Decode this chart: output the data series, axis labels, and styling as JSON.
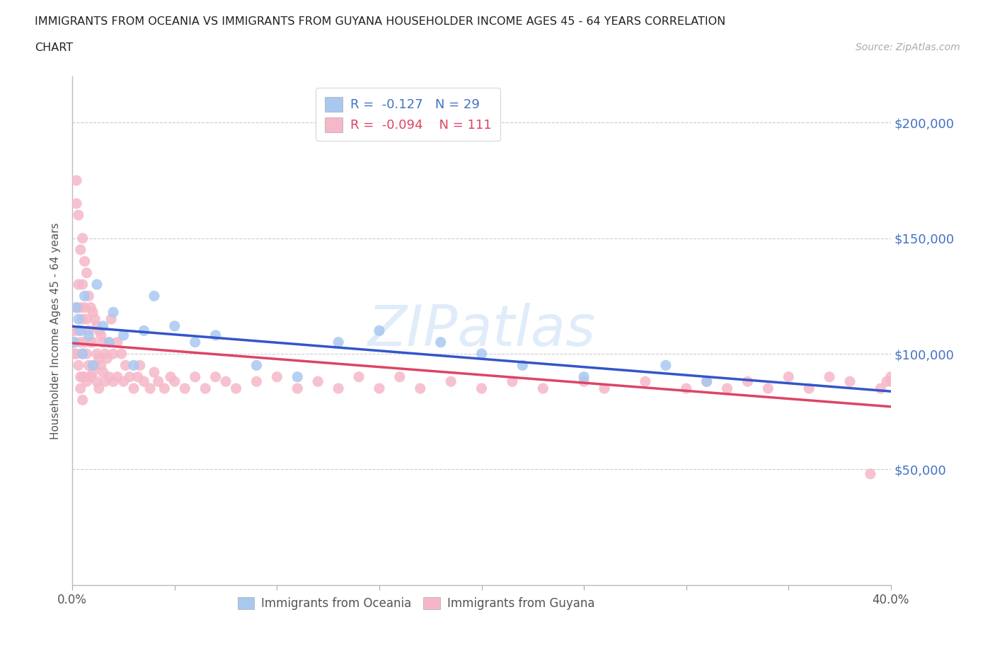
{
  "title_line1": "IMMIGRANTS FROM OCEANIA VS IMMIGRANTS FROM GUYANA HOUSEHOLDER INCOME AGES 45 - 64 YEARS CORRELATION",
  "title_line2": "CHART",
  "source": "Source: ZipAtlas.com",
  "ylabel": "Householder Income Ages 45 - 64 years",
  "xlim": [
    0.0,
    0.4
  ],
  "ylim": [
    0,
    220000
  ],
  "yticks": [
    0,
    50000,
    100000,
    150000,
    200000
  ],
  "ytick_labels": [
    "",
    "$50,000",
    "$100,000",
    "$150,000",
    "$200,000"
  ],
  "xtick_labels": [
    "0.0%",
    "",
    "",
    "",
    "",
    "",
    "",
    "",
    "40.0%"
  ],
  "oceania_color": "#a8c8f0",
  "guyana_color": "#f5b8c8",
  "oceania_line_color": "#3355cc",
  "guyana_line_color": "#dd4466",
  "r_oceania": -0.127,
  "n_oceania": 29,
  "r_guyana": -0.094,
  "n_guyana": 111,
  "background_color": "#ffffff",
  "oceania_x": [
    0.001,
    0.002,
    0.003,
    0.004,
    0.005,
    0.006,
    0.008,
    0.01,
    0.012,
    0.015,
    0.018,
    0.02,
    0.025,
    0.03,
    0.035,
    0.04,
    0.05,
    0.06,
    0.07,
    0.09,
    0.11,
    0.13,
    0.15,
    0.18,
    0.2,
    0.22,
    0.25,
    0.29,
    0.31
  ],
  "oceania_y": [
    105000,
    120000,
    115000,
    110000,
    100000,
    125000,
    108000,
    95000,
    130000,
    112000,
    105000,
    118000,
    108000,
    95000,
    110000,
    125000,
    112000,
    105000,
    108000,
    95000,
    90000,
    105000,
    110000,
    105000,
    100000,
    95000,
    90000,
    95000,
    88000
  ],
  "guyana_x": [
    0.001,
    0.001,
    0.001,
    0.002,
    0.002,
    0.002,
    0.002,
    0.003,
    0.003,
    0.003,
    0.003,
    0.004,
    0.004,
    0.004,
    0.004,
    0.004,
    0.005,
    0.005,
    0.005,
    0.005,
    0.005,
    0.005,
    0.006,
    0.006,
    0.006,
    0.006,
    0.007,
    0.007,
    0.007,
    0.007,
    0.008,
    0.008,
    0.008,
    0.009,
    0.009,
    0.009,
    0.01,
    0.01,
    0.01,
    0.011,
    0.011,
    0.012,
    0.012,
    0.012,
    0.013,
    0.013,
    0.013,
    0.014,
    0.014,
    0.015,
    0.015,
    0.016,
    0.016,
    0.017,
    0.018,
    0.018,
    0.019,
    0.02,
    0.02,
    0.022,
    0.022,
    0.024,
    0.025,
    0.026,
    0.028,
    0.03,
    0.032,
    0.033,
    0.035,
    0.038,
    0.04,
    0.042,
    0.045,
    0.048,
    0.05,
    0.055,
    0.06,
    0.065,
    0.07,
    0.075,
    0.08,
    0.09,
    0.1,
    0.11,
    0.12,
    0.13,
    0.14,
    0.15,
    0.16,
    0.17,
    0.185,
    0.2,
    0.215,
    0.23,
    0.25,
    0.26,
    0.28,
    0.3,
    0.31,
    0.32,
    0.33,
    0.34,
    0.35,
    0.36,
    0.37,
    0.38,
    0.39,
    0.395,
    0.398,
    0.4,
    0.4
  ],
  "guyana_y": [
    100000,
    110000,
    105000,
    175000,
    165000,
    120000,
    100000,
    160000,
    130000,
    110000,
    95000,
    145000,
    120000,
    105000,
    90000,
    85000,
    150000,
    130000,
    115000,
    100000,
    90000,
    80000,
    140000,
    120000,
    105000,
    90000,
    135000,
    115000,
    100000,
    88000,
    125000,
    110000,
    95000,
    120000,
    105000,
    90000,
    118000,
    105000,
    92000,
    115000,
    95000,
    112000,
    100000,
    88000,
    110000,
    98000,
    85000,
    108000,
    95000,
    105000,
    92000,
    100000,
    88000,
    98000,
    105000,
    90000,
    115000,
    100000,
    88000,
    105000,
    90000,
    100000,
    88000,
    95000,
    90000,
    85000,
    90000,
    95000,
    88000,
    85000,
    92000,
    88000,
    85000,
    90000,
    88000,
    85000,
    90000,
    85000,
    90000,
    88000,
    85000,
    88000,
    90000,
    85000,
    88000,
    85000,
    90000,
    85000,
    90000,
    85000,
    88000,
    85000,
    88000,
    85000,
    88000,
    85000,
    88000,
    85000,
    88000,
    85000,
    88000,
    85000,
    90000,
    85000,
    90000,
    88000,
    48000,
    85000,
    88000,
    90000,
    88000
  ]
}
